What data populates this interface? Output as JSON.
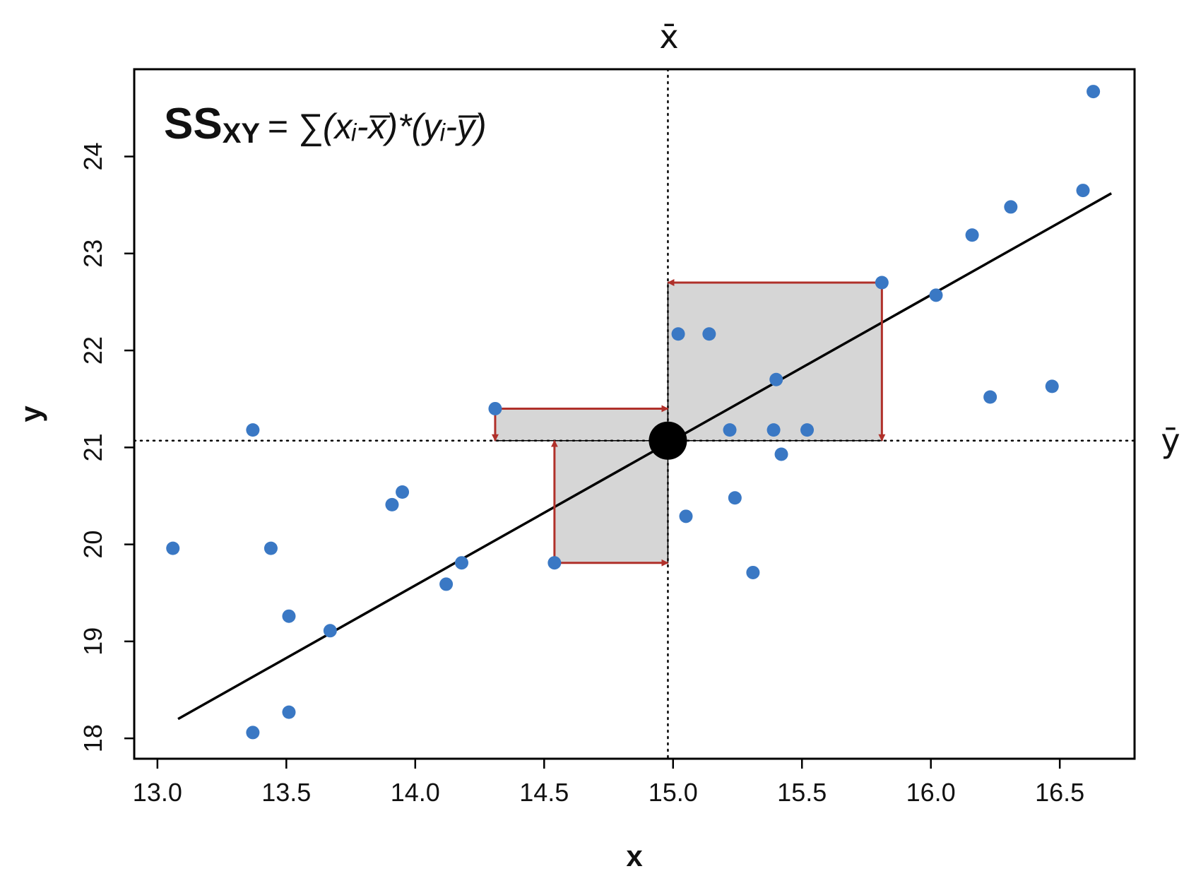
{
  "chart_data": {
    "type": "scatter",
    "xlabel": "x",
    "ylabel": "y",
    "xlim": [
      12.91,
      16.79
    ],
    "ylim": [
      17.79,
      24.9
    ],
    "xticks": [
      13.0,
      13.5,
      14.0,
      14.5,
      15.0,
      15.5,
      16.0,
      16.5
    ],
    "xtick_labels": [
      "13.0",
      "13.5",
      "14.0",
      "14.5",
      "15.0",
      "15.5",
      "16.0",
      "16.5"
    ],
    "yticks": [
      18,
      19,
      20,
      21,
      22,
      23,
      24
    ],
    "ytick_labels": [
      "18",
      "19",
      "20",
      "21",
      "22",
      "23",
      "24"
    ],
    "grid": false,
    "formula": {
      "ss": "SS",
      "sub": "XY",
      "body": "= ∑(xᵢ-x̅)*(yᵢ-y̅)"
    },
    "mean_x": {
      "value": 14.98,
      "label": "x̄"
    },
    "mean_y": {
      "value": 21.07,
      "label": "ȳ"
    },
    "points": [
      {
        "x": 13.06,
        "y": 19.96
      },
      {
        "x": 13.37,
        "y": 21.18
      },
      {
        "x": 13.37,
        "y": 18.06
      },
      {
        "x": 13.44,
        "y": 19.96
      },
      {
        "x": 13.51,
        "y": 19.26
      },
      {
        "x": 13.51,
        "y": 18.27
      },
      {
        "x": 13.67,
        "y": 19.11
      },
      {
        "x": 13.91,
        "y": 20.41
      },
      {
        "x": 13.95,
        "y": 20.54
      },
      {
        "x": 14.12,
        "y": 19.59
      },
      {
        "x": 14.18,
        "y": 19.81
      },
      {
        "x": 14.31,
        "y": 21.4
      },
      {
        "x": 14.54,
        "y": 19.81
      },
      {
        "x": 15.02,
        "y": 22.17
      },
      {
        "x": 15.05,
        "y": 20.29
      },
      {
        "x": 15.14,
        "y": 22.17
      },
      {
        "x": 15.22,
        "y": 21.18
      },
      {
        "x": 15.24,
        "y": 20.48
      },
      {
        "x": 15.31,
        "y": 19.71
      },
      {
        "x": 15.39,
        "y": 21.18
      },
      {
        "x": 15.4,
        "y": 21.7
      },
      {
        "x": 15.42,
        "y": 20.93
      },
      {
        "x": 15.52,
        "y": 21.18
      },
      {
        "x": 15.81,
        "y": 22.7
      },
      {
        "x": 16.02,
        "y": 22.57
      },
      {
        "x": 16.16,
        "y": 23.19
      },
      {
        "x": 16.23,
        "y": 21.52
      },
      {
        "x": 16.31,
        "y": 23.48
      },
      {
        "x": 16.47,
        "y": 21.63
      },
      {
        "x": 16.59,
        "y": 23.65
      },
      {
        "x": 16.63,
        "y": 24.67
      }
    ],
    "regression_line": {
      "x1": 13.08,
      "y1": 18.2,
      "x2": 16.7,
      "y2": 23.62
    },
    "deviation_rects": [
      {
        "x1": 14.31,
        "y1": 21.07,
        "x2": 14.98,
        "y2": 21.4
      },
      {
        "x1": 14.54,
        "y1": 19.81,
        "x2": 14.98,
        "y2": 21.07
      },
      {
        "x1": 14.98,
        "y1": 21.07,
        "x2": 15.81,
        "y2": 22.7
      }
    ],
    "arrows": [
      {
        "from": [
          14.31,
          21.4
        ],
        "to": [
          14.98,
          21.4
        ]
      },
      {
        "from": [
          14.31,
          21.4
        ],
        "to": [
          14.31,
          21.07
        ]
      },
      {
        "from": [
          14.54,
          19.81
        ],
        "to": [
          14.98,
          19.81
        ]
      },
      {
        "from": [
          14.54,
          19.81
        ],
        "to": [
          14.54,
          21.07
        ]
      },
      {
        "from": [
          15.81,
          22.7
        ],
        "to": [
          14.98,
          22.7
        ]
      },
      {
        "from": [
          15.81,
          22.7
        ],
        "to": [
          15.81,
          21.07
        ]
      }
    ],
    "colors": {
      "points": "#3a78c4",
      "rect_fill": "#d6d6d6",
      "arrow": "#b0302a",
      "line": "#000000"
    }
  }
}
